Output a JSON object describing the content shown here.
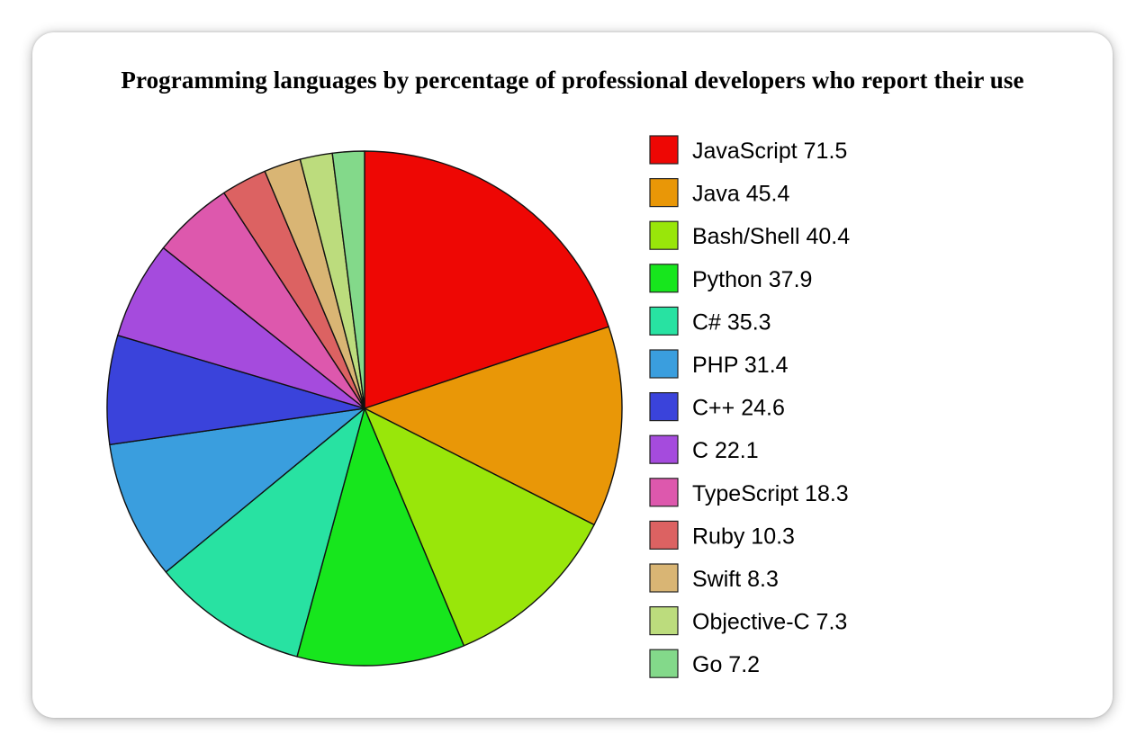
{
  "chart_data": {
    "type": "pie",
    "title": "Programming languages by percentage of professional developers who report their use",
    "legend_position": "right",
    "slices": [
      {
        "label": "JavaScript",
        "value": 71.5,
        "color": "#ee0704"
      },
      {
        "label": "Java",
        "value": 45.4,
        "color": "#e99707"
      },
      {
        "label": "Bash/Shell",
        "value": 40.4,
        "color": "#99e60a"
      },
      {
        "label": "Python",
        "value": 37.9,
        "color": "#17e61d"
      },
      {
        "label": "C#",
        "value": 35.3,
        "color": "#28e2a2"
      },
      {
        "label": "PHP",
        "value": 31.4,
        "color": "#3a9ede"
      },
      {
        "label": "C++",
        "value": 24.6,
        "color": "#3a43db"
      },
      {
        "label": "C",
        "value": 22.1,
        "color": "#a54bdd"
      },
      {
        "label": "TypeScript",
        "value": 18.3,
        "color": "#dd58ad"
      },
      {
        "label": "Ruby",
        "value": 10.3,
        "color": "#dc6262"
      },
      {
        "label": "Swift",
        "value": 8.3,
        "color": "#d9b574"
      },
      {
        "label": "Objective-C",
        "value": 7.3,
        "color": "#bcdc7d"
      },
      {
        "label": "Go",
        "value": 7.2,
        "color": "#83d98a"
      }
    ]
  }
}
